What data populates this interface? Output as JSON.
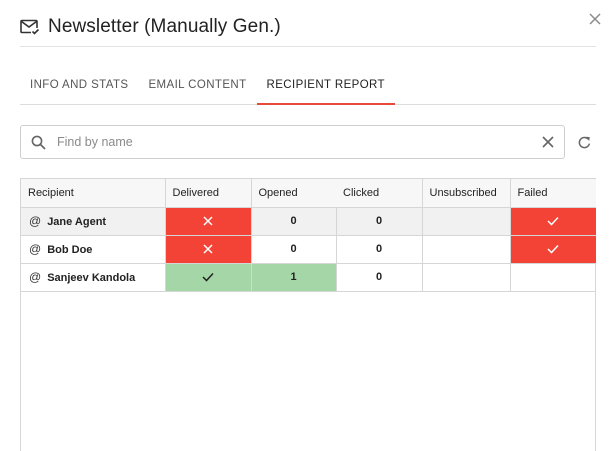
{
  "dialog": {
    "title": "Newsletter (Manually Gen.)"
  },
  "tabs": [
    {
      "label": "INFO AND STATS",
      "active": false
    },
    {
      "label": "EMAIL CONTENT",
      "active": false
    },
    {
      "label": "RECIPIENT REPORT",
      "active": true
    }
  ],
  "search": {
    "placeholder": "Find by name",
    "value": ""
  },
  "table": {
    "columns": [
      "Recipient",
      "Delivered",
      "Opened",
      "Clicked",
      "Unsubscribed",
      "Failed"
    ],
    "rows": [
      {
        "recipient": "Jane Agent",
        "delivered": "x",
        "opened": "0",
        "clicked": "0",
        "unsubscribed": "",
        "failed": "check",
        "selected": true
      },
      {
        "recipient": "Bob Doe",
        "delivered": "x",
        "opened": "0",
        "clicked": "0",
        "unsubscribed": "",
        "failed": "check",
        "selected": false
      },
      {
        "recipient": "Sanjeev Kandola",
        "delivered": "check",
        "opened": "1",
        "clicked": "0",
        "unsubscribed": "",
        "failed": "",
        "selected": false
      }
    ]
  },
  "colors": {
    "accent": "#e8493a",
    "failed_red": "#f24336",
    "success_green": "#a5d6a7",
    "selected_row": "#f1f1f1"
  },
  "icons": {
    "title": "mail-check-icon",
    "close": "close-icon",
    "search": "search-icon",
    "clear": "clear-icon",
    "refresh": "refresh-icon",
    "recipient": "at-sign-icon"
  }
}
